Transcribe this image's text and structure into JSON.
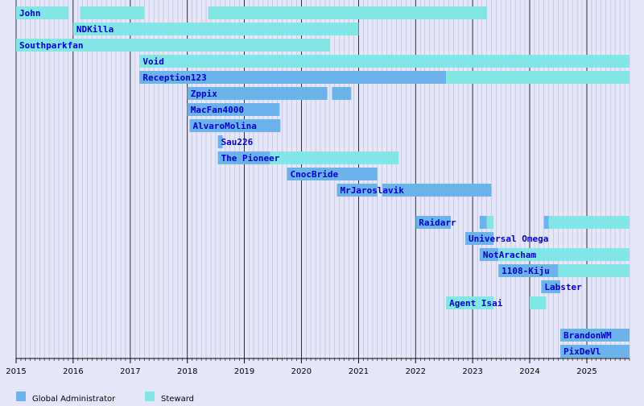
{
  "chart_data": {
    "type": "bar",
    "subtype": "timeline",
    "title": "",
    "xlabel": "",
    "ylabel": "",
    "x_range": [
      "2015-01-01",
      "2025-10-01"
    ],
    "year_ticks": [
      "2015",
      "2016",
      "2017",
      "2018",
      "2019",
      "2020",
      "2021",
      "2022",
      "2023",
      "2024",
      "2025"
    ],
    "grid": true,
    "legend_position": "bottom-left",
    "legend": [
      {
        "key": "ga",
        "label": "Global Administrator",
        "color": "#6cb2eb"
      },
      {
        "key": "steward",
        "label": "Steward",
        "color": "#82e6e6"
      }
    ],
    "rows": [
      {
        "name": "John",
        "periods": [
          {
            "role": "steward",
            "start": "2015-01-01",
            "end": "2015-12-01"
          },
          {
            "role": "steward",
            "start": "2016-02-15",
            "end": "2017-04-01"
          },
          {
            "role": "steward",
            "start": "2018-05-15",
            "end": "2023-04-01"
          }
        ]
      },
      {
        "name": "NDKilla",
        "periods": [
          {
            "role": "steward",
            "start": "2016-01-01",
            "end": "2021-01-01"
          }
        ]
      },
      {
        "name": "Southparkfan",
        "periods": [
          {
            "role": "steward",
            "start": "2015-01-01",
            "end": "2020-07-01"
          }
        ]
      },
      {
        "name": "Void",
        "periods": [
          {
            "role": "steward",
            "start": "2017-03-01",
            "end": "2025-10-01"
          }
        ]
      },
      {
        "name": "Reception123",
        "periods": [
          {
            "role": "ga",
            "start": "2017-03-01",
            "end": "2022-07-15"
          },
          {
            "role": "steward",
            "start": "2022-07-15",
            "end": "2025-10-01"
          }
        ]
      },
      {
        "name": "Zppix",
        "periods": [
          {
            "role": "ga",
            "start": "2018-01-01",
            "end": "2020-06-15"
          },
          {
            "role": "ga",
            "start": "2020-07-15",
            "end": "2020-11-15"
          }
        ]
      },
      {
        "name": "MacFan4000",
        "periods": [
          {
            "role": "ga",
            "start": "2018-01-01",
            "end": "2019-08-15"
          }
        ]
      },
      {
        "name": "AlvaroMolina",
        "periods": [
          {
            "role": "ga",
            "start": "2018-01-15",
            "end": "2019-08-20"
          }
        ]
      },
      {
        "name": "Sau226",
        "periods": [
          {
            "role": "ga",
            "start": "2018-07-15",
            "end": "2018-08-15"
          }
        ]
      },
      {
        "name": "The Pioneer",
        "periods": [
          {
            "role": "ga",
            "start": "2018-07-15",
            "end": "2019-06-15"
          },
          {
            "role": "steward",
            "start": "2019-06-15",
            "end": "2021-09-15"
          }
        ]
      },
      {
        "name": "CnocBride",
        "periods": [
          {
            "role": "ga",
            "start": "2019-10-01",
            "end": "2021-05-01"
          }
        ]
      },
      {
        "name": "MrJaroslavik",
        "periods": [
          {
            "role": "ga",
            "start": "2020-08-15",
            "end": "2021-05-01"
          },
          {
            "role": "ga",
            "start": "2021-06-01",
            "end": "2023-05-01"
          }
        ]
      },
      {
        "name": "",
        "periods": []
      },
      {
        "name": "Raidarr",
        "periods": [
          {
            "role": "ga",
            "start": "2022-01-01",
            "end": "2022-08-15"
          },
          {
            "role": "ga",
            "start": "2023-02-15",
            "end": "2023-04-01"
          },
          {
            "role": "steward",
            "start": "2023-04-01",
            "end": "2023-05-15"
          },
          {
            "role": "ga",
            "start": "2024-04-01",
            "end": "2024-05-01"
          },
          {
            "role": "steward",
            "start": "2024-05-01",
            "end": "2025-10-01"
          }
        ]
      },
      {
        "name": "Universal Omega",
        "periods": [
          {
            "role": "ga",
            "start": "2022-11-15",
            "end": "2023-05-15"
          }
        ]
      },
      {
        "name": "NotAracham",
        "periods": [
          {
            "role": "ga",
            "start": "2023-02-15",
            "end": "2023-06-15"
          },
          {
            "role": "steward",
            "start": "2023-06-15",
            "end": "2025-10-01"
          }
        ]
      },
      {
        "name": "1108-Kiju",
        "periods": [
          {
            "role": "ga",
            "start": "2023-06-15",
            "end": "2024-07-01"
          },
          {
            "role": "steward",
            "start": "2024-07-01",
            "end": "2025-10-01"
          }
        ]
      },
      {
        "name": "Labster",
        "periods": [
          {
            "role": "ga",
            "start": "2024-03-15",
            "end": "2024-07-15"
          }
        ]
      },
      {
        "name": "Agent Isai",
        "periods": [
          {
            "role": "steward",
            "start": "2022-07-15",
            "end": "2023-05-15"
          },
          {
            "role": "steward",
            "start": "2024-01-01",
            "end": "2024-04-15"
          }
        ]
      },
      {
        "name": "",
        "periods": []
      },
      {
        "name": "BrandonWM",
        "periods": [
          {
            "role": "ga",
            "start": "2024-07-15",
            "end": "2025-10-01"
          }
        ]
      },
      {
        "name": "PixDeVl",
        "periods": [
          {
            "role": "ga",
            "start": "2024-07-15",
            "end": "2025-10-01"
          }
        ]
      }
    ]
  }
}
